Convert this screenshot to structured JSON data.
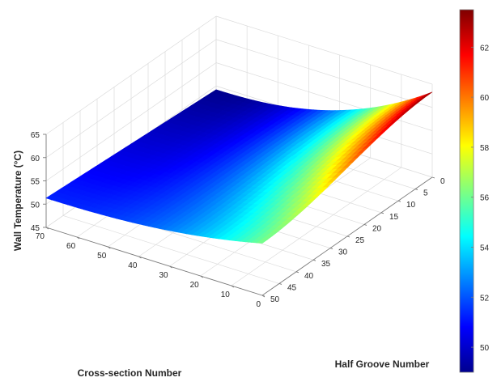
{
  "chart_data": {
    "type": "surface",
    "title": "",
    "colormap": "jet",
    "xlabel": "Cross-section Number",
    "ylabel": "Half Groove Number",
    "zlabel": "Wall Temperature (°C)",
    "xlim": [
      0,
      70
    ],
    "ylim": [
      0,
      50
    ],
    "zlim": [
      45,
      65
    ],
    "x_ticks": [
      "0",
      "10",
      "20",
      "30",
      "40",
      "50",
      "60",
      "70"
    ],
    "y_ticks": [
      "0",
      "5",
      "10",
      "15",
      "20",
      "25",
      "30",
      "35",
      "40",
      "45",
      "50"
    ],
    "z_ticks": [
      "45",
      "50",
      "55",
      "60",
      "65"
    ],
    "clim": [
      49,
      63.5
    ],
    "colorbar_ticks": [
      "50",
      "52",
      "54",
      "56",
      "58",
      "60",
      "62"
    ],
    "grid": true,
    "corner_values": [
      {
        "x": 70,
        "y": 50,
        "z": 51.3
      },
      {
        "x": 70,
        "y": 0,
        "z": 49.2
      },
      {
        "x": 0,
        "y": 0,
        "z": 63.3
      },
      {
        "x": 0,
        "y": 50,
        "z": 56.2
      }
    ]
  }
}
